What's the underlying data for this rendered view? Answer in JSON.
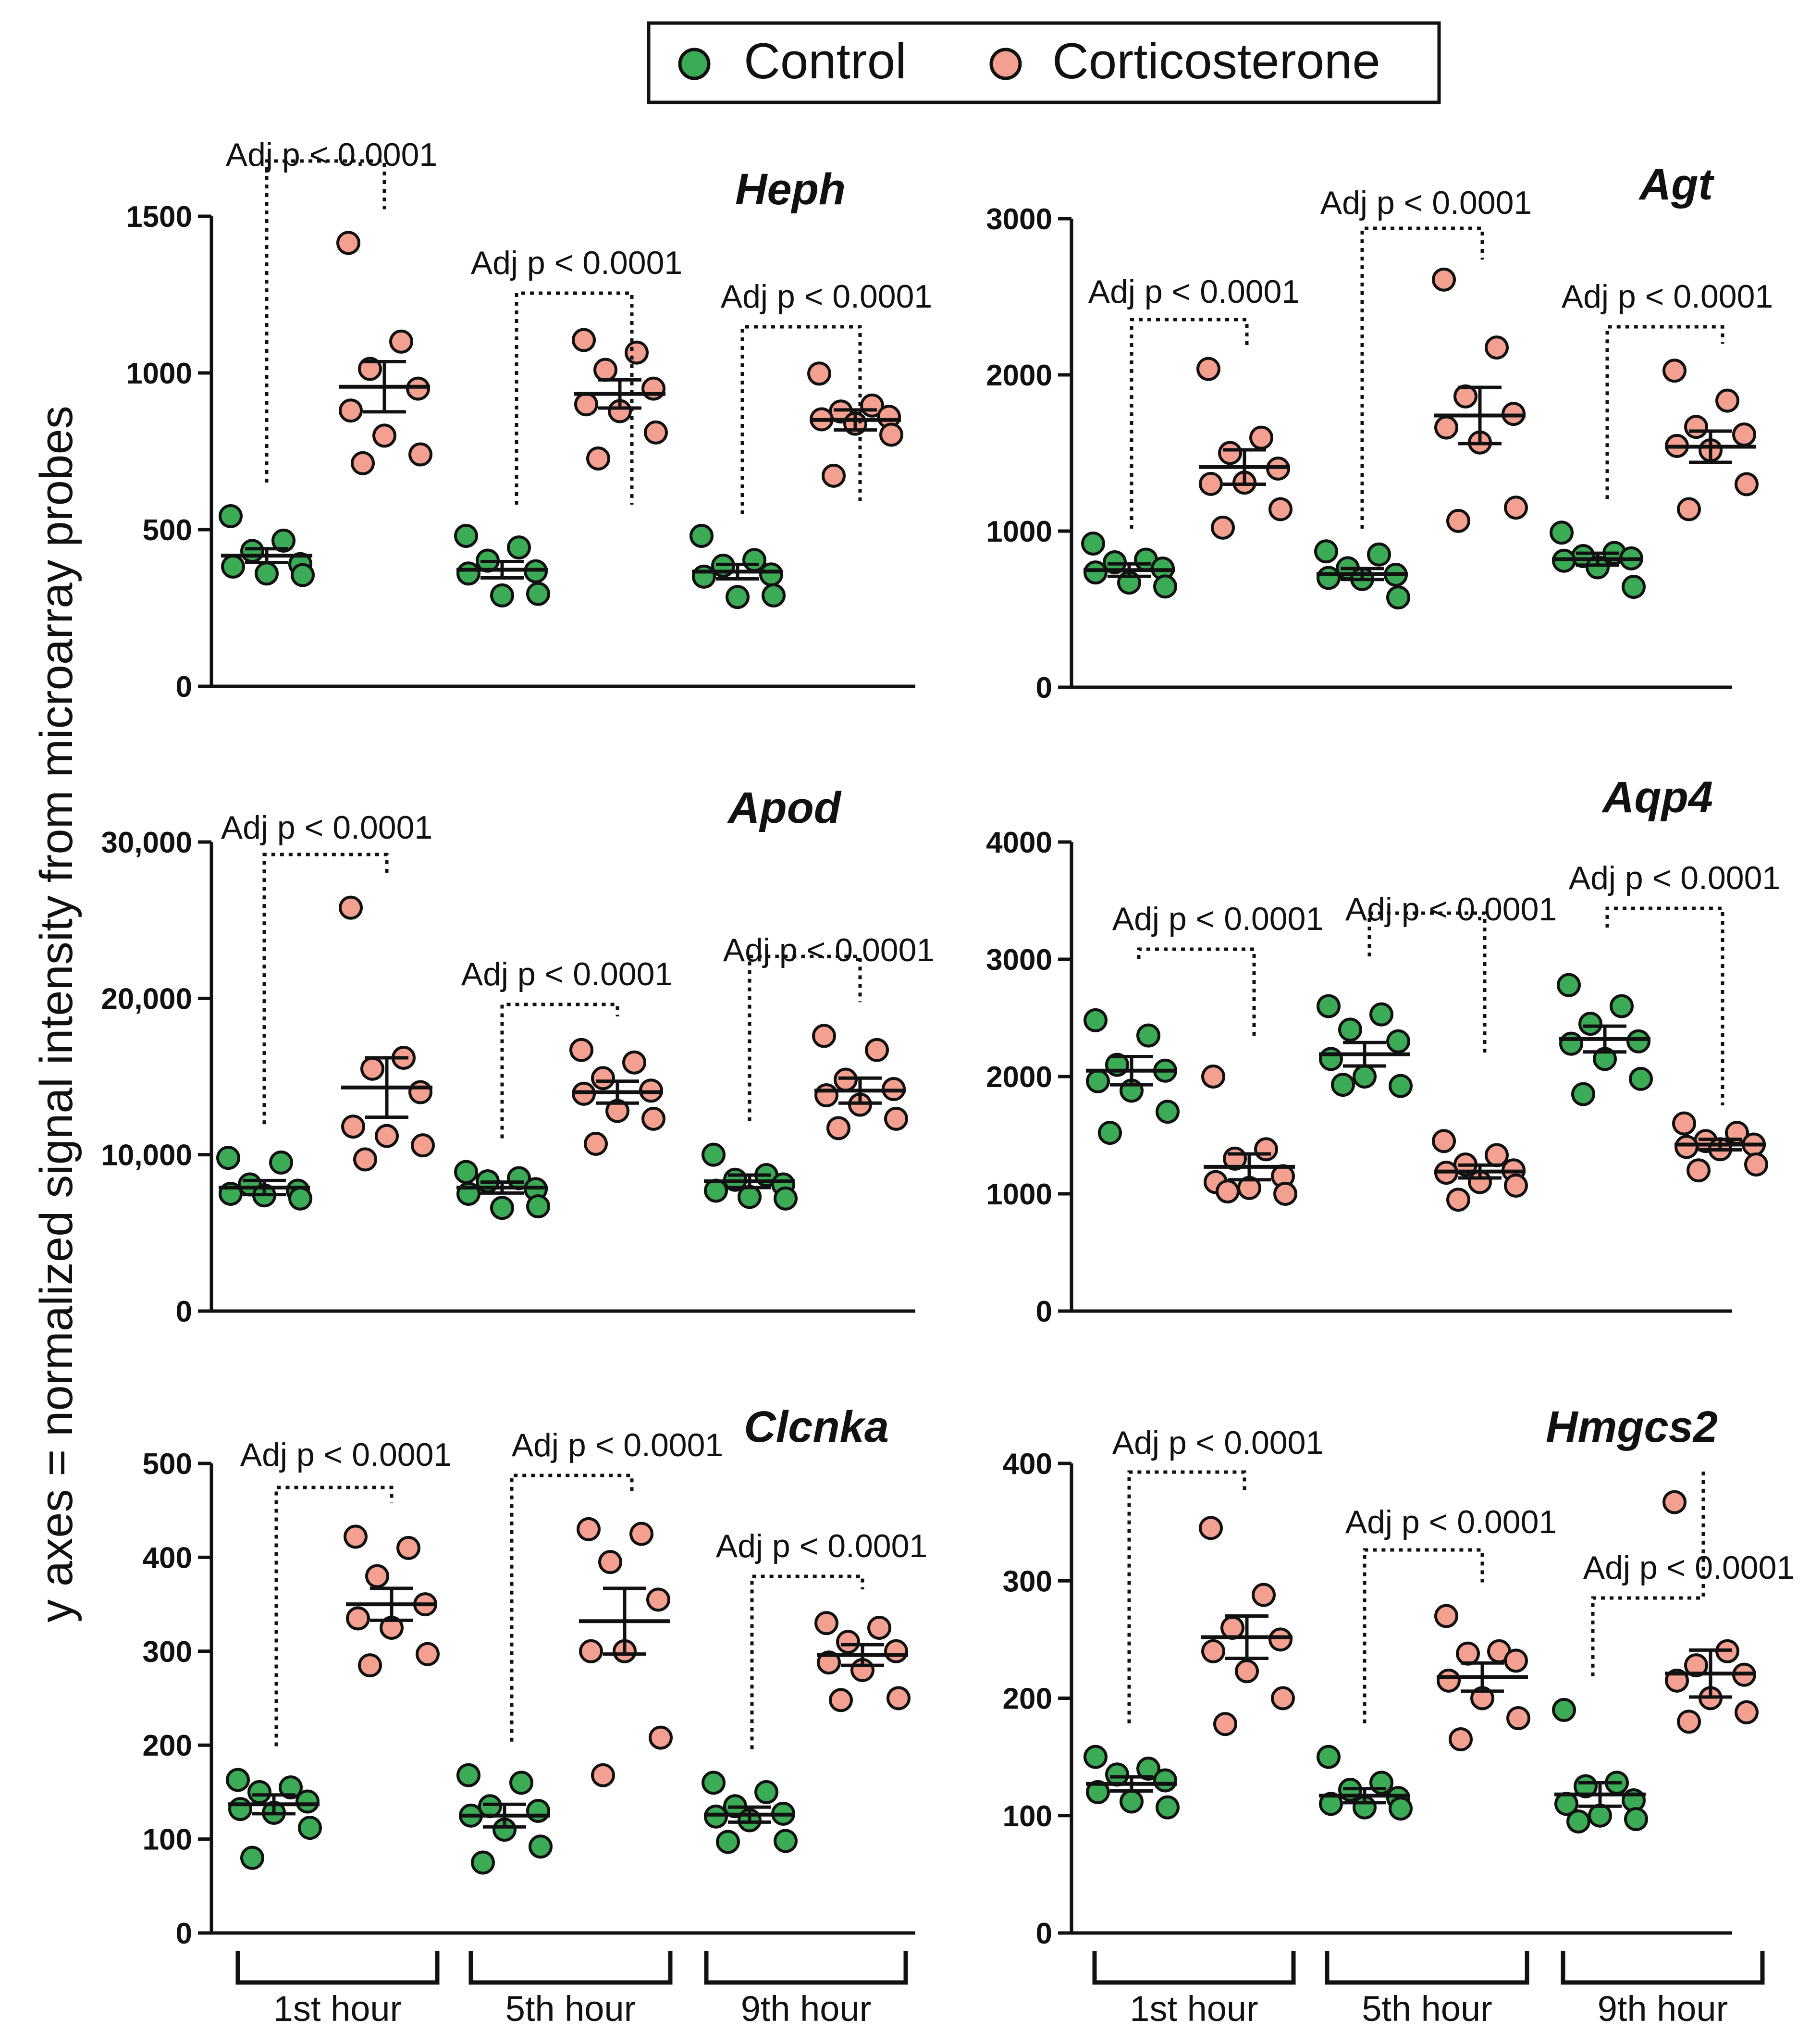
{
  "legend": {
    "items": [
      {
        "label": "Control",
        "color": "#3cab56"
      },
      {
        "label": "Corticosterone",
        "color": "#f3a091"
      }
    ]
  },
  "ylabel": "y axes = normalized signal intensity from microarray probes",
  "timepoints": [
    "1st hour",
    "5th hour",
    "9th hour"
  ],
  "chart_data": [
    {
      "type": "scatter",
      "title": "Heph",
      "ylim": [
        0,
        1500
      ],
      "yticks": [
        "0",
        "500",
        "1000",
        "1500"
      ],
      "tick_values": [
        0,
        500,
        1000,
        1500
      ],
      "categories": [
        "1st hour",
        "5th hour",
        "9th hour"
      ],
      "series": [
        {
          "name": "Control",
          "groups": [
            {
              "values": [
                543,
                465,
                432,
                390,
                382,
                360,
                355
              ],
              "mean": 417,
              "sem": 22
            },
            {
              "values": [
                480,
                443,
                401,
                367,
                360,
                290,
                295
              ],
              "mean": 372,
              "sem": 26
            },
            {
              "values": [
                480,
                403,
                385,
                357,
                350,
                285,
                290
              ],
              "mean": 366,
              "sem": 23
            }
          ]
        },
        {
          "name": "Corticosterone",
          "groups": [
            {
              "values": [
                1415,
                1100,
                1013,
                950,
                880,
                800,
                740,
                712
              ],
              "mean": 956,
              "sem": 80
            },
            {
              "values": [
                1105,
                1065,
                1010,
                950,
                900,
                878,
                810,
                727
              ],
              "mean": 933,
              "sem": 45
            },
            {
              "values": [
                998,
                896,
                877,
                860,
                852,
                838,
                803,
                672
              ],
              "mean": 850,
              "sem": 32
            }
          ]
        }
      ],
      "annotations": [
        {
          "text": "Adj p < 0.0001",
          "group": 0
        },
        {
          "text": "Adj p < 0.0001",
          "group": 1
        },
        {
          "text": "Adj p < 0.0001",
          "group": 2
        }
      ]
    },
    {
      "type": "scatter",
      "title": "Agt",
      "ylim": [
        0,
        3000
      ],
      "yticks": [
        "0",
        "1000",
        "2000",
        "3000"
      ],
      "tick_values": [
        0,
        1000,
        2000,
        3000
      ],
      "categories": [
        "1st hour",
        "5th hour",
        "9th hour"
      ],
      "series": [
        {
          "name": "Control",
          "groups": [
            {
              "values": [
                920,
                817,
                800,
                760,
                735,
                670,
                645
              ],
              "mean": 750,
              "sem": 40
            },
            {
              "values": [
                870,
                850,
                762,
                720,
                700,
                693,
                575
              ],
              "mean": 725,
              "sem": 35
            },
            {
              "values": [
                990,
                860,
                840,
                825,
                810,
                768,
                643
              ],
              "mean": 820,
              "sem": 38
            }
          ]
        },
        {
          "name": "Corticosterone",
          "groups": [
            {
              "values": [
                2038,
                1598,
                1500,
                1400,
                1302,
                1310,
                1140,
                1022
              ],
              "mean": 1410,
              "sem": 110
            },
            {
              "values": [
                2610,
                2175,
                1862,
                1750,
                1663,
                1567,
                1150,
                1065
              ],
              "mean": 1740,
              "sem": 180
            },
            {
              "values": [
                2027,
                1835,
                1667,
                1618,
                1545,
                1517,
                1300,
                1140
              ],
              "mean": 1540,
              "sem": 100
            }
          ]
        }
      ],
      "annotations": [
        {
          "text": "Adj p < 0.0001",
          "group": 0
        },
        {
          "text": "Adj p < 0.0001",
          "group": 1
        },
        {
          "text": "Adj p < 0.0001",
          "group": 2
        }
      ]
    },
    {
      "type": "scatter",
      "title": "Apod",
      "ylim": [
        0,
        30000
      ],
      "yticks": [
        "0",
        "10,000",
        "20,000",
        "30,000"
      ],
      "tick_values": [
        0,
        10000,
        20000,
        30000
      ],
      "categories": [
        "1st hour",
        "5th hour",
        "9th hour"
      ],
      "series": [
        {
          "name": "Control",
          "groups": [
            {
              "values": [
                9800,
                9500,
                8100,
                7700,
                7500,
                7400,
                7200
              ],
              "mean": 7900,
              "sem": 450
            },
            {
              "values": [
                8900,
                8500,
                8300,
                7800,
                7500,
                6600,
                6700
              ],
              "mean": 7900,
              "sem": 350
            },
            {
              "values": [
                10000,
                8700,
                8400,
                8100,
                7700,
                7300,
                7200
              ],
              "mean": 8300,
              "sem": 400
            }
          ]
        },
        {
          "name": "Corticosterone",
          "groups": [
            {
              "values": [
                25800,
                16200,
                15500,
                14000,
                11800,
                11200,
                10600,
                9700
              ],
              "mean": 14300,
              "sem": 1900
            },
            {
              "values": [
                16700,
                15900,
                14900,
                14100,
                13900,
                12800,
                12300,
                10700
              ],
              "mean": 14000,
              "sem": 700
            },
            {
              "values": [
                17600,
                16700,
                14800,
                14200,
                13800,
                13200,
                12300,
                11700
              ],
              "mean": 14100,
              "sem": 800
            }
          ]
        }
      ],
      "annotations": [
        {
          "text": "Adj p < 0.0001",
          "group": 0
        },
        {
          "text": "Adj p < 0.0001",
          "group": 1
        },
        {
          "text": "Adj p < 0.0001",
          "group": 2
        }
      ]
    },
    {
      "type": "scatter",
      "title": "Aqp4",
      "ylim": [
        0,
        4000
      ],
      "yticks": [
        "0",
        "1000",
        "2000",
        "3000",
        "4000"
      ],
      "tick_values": [
        0,
        1000,
        2000,
        3000,
        4000
      ],
      "categories": [
        "1st hour",
        "5th hour",
        "9th hour"
      ],
      "series": [
        {
          "name": "Control",
          "groups": [
            {
              "values": [
                2480,
                2350,
                2100,
                2050,
                1960,
                1880,
                1700,
                1520
              ],
              "mean": 2050,
              "sem": 120
            },
            {
              "values": [
                2600,
                2530,
                2400,
                2300,
                2150,
                2000,
                1920,
                1930
              ],
              "mean": 2190,
              "sem": 100
            },
            {
              "values": [
                2780,
                2600,
                2450,
                2300,
                2280,
                2150,
                1980,
                1850
              ],
              "mean": 2320,
              "sem": 110
            }
          ]
        },
        {
          "name": "Corticosterone",
          "groups": [
            {
              "values": [
                2000,
                1380,
                1300,
                1150,
                1100,
                1050,
                1000,
                1020
              ],
              "mean": 1230,
              "sem": 110
            },
            {
              "values": [
                1450,
                1330,
                1250,
                1200,
                1180,
                1100,
                1070,
                950
              ],
              "mean": 1190,
              "sem": 55
            },
            {
              "values": [
                1600,
                1520,
                1450,
                1420,
                1400,
                1380,
                1250,
                1200
              ],
              "mean": 1420,
              "sem": 45
            }
          ]
        }
      ],
      "annotations": [
        {
          "text": "Adj p < 0.0001",
          "group": 0
        },
        {
          "text": "Adj p < 0.0001",
          "group": 1
        },
        {
          "text": "Adj p < 0.0001",
          "group": 2
        }
      ]
    },
    {
      "type": "scatter",
      "title": "Clcnka",
      "ylim": [
        0,
        500
      ],
      "yticks": [
        "0",
        "100",
        "200",
        "300",
        "400",
        "500"
      ],
      "tick_values": [
        0,
        100,
        200,
        300,
        400,
        500
      ],
      "categories": [
        "1st hour",
        "5th hour",
        "9th hour"
      ],
      "series": [
        {
          "name": "Control",
          "groups": [
            {
              "values": [
                163,
                155,
                150,
                140,
                132,
                128,
                112,
                80
              ],
              "mean": 137,
              "sem": 10
            },
            {
              "values": [
                168,
                160,
                135,
                130,
                125,
                110,
                92,
                75
              ],
              "mean": 125,
              "sem": 12
            },
            {
              "values": [
                160,
                150,
                135,
                127,
                124,
                120,
                98,
                97
              ],
              "mean": 126,
              "sem": 8
            }
          ]
        },
        {
          "name": "Corticosterone",
          "groups": [
            {
              "values": [
                422,
                410,
                380,
                350,
                335,
                325,
                297,
                285
              ],
              "mean": 350,
              "sem": 17
            },
            {
              "values": [
                430,
                425,
                395,
                355,
                300,
                300,
                208,
                168
              ],
              "mean": 332,
              "sem": 35
            },
            {
              "values": [
                330,
                325,
                310,
                300,
                288,
                280,
                250,
                248
              ],
              "mean": 296,
              "sem": 11
            }
          ]
        }
      ],
      "annotations": [
        {
          "text": "Adj p < 0.0001",
          "group": 0
        },
        {
          "text": "Adj p < 0.0001",
          "group": 1
        },
        {
          "text": "Adj p < 0.0001",
          "group": 2
        }
      ]
    },
    {
      "type": "scatter",
      "title": "Hmgcs2",
      "ylim": [
        0,
        400
      ],
      "yticks": [
        "0",
        "100",
        "200",
        "300",
        "400"
      ],
      "tick_values": [
        0,
        100,
        200,
        300,
        400
      ],
      "categories": [
        "1st hour",
        "5th hour",
        "9th hour"
      ],
      "series": [
        {
          "name": "Control",
          "groups": [
            {
              "values": [
                150,
                140,
                135,
                130,
                120,
                112,
                107
              ],
              "mean": 127,
              "sem": 6
            },
            {
              "values": [
                150,
                128,
                122,
                115,
                110,
                107,
                106
              ],
              "mean": 117,
              "sem": 6
            },
            {
              "values": [
                190,
                128,
                125,
                113,
                110,
                100,
                97,
                95
              ],
              "mean": 118,
              "sem": 10
            }
          ]
        },
        {
          "name": "Corticosterone",
          "groups": [
            {
              "values": [
                345,
                288,
                260,
                250,
                240,
                223,
                200,
                178
              ],
              "mean": 252,
              "sem": 18
            },
            {
              "values": [
                270,
                240,
                238,
                232,
                215,
                200,
                183,
                165
              ],
              "mean": 218,
              "sem": 12
            },
            {
              "values": [
                367,
                240,
                228,
                220,
                215,
                200,
                188,
                180
              ],
              "mean": 221,
              "sem": 20
            }
          ]
        }
      ],
      "annotations": [
        {
          "text": "Adj p < 0.0001",
          "group": 0
        },
        {
          "text": "Adj p < 0.0001",
          "group": 1
        },
        {
          "text": "Adj p < 0.0001",
          "group": 2
        }
      ]
    }
  ]
}
